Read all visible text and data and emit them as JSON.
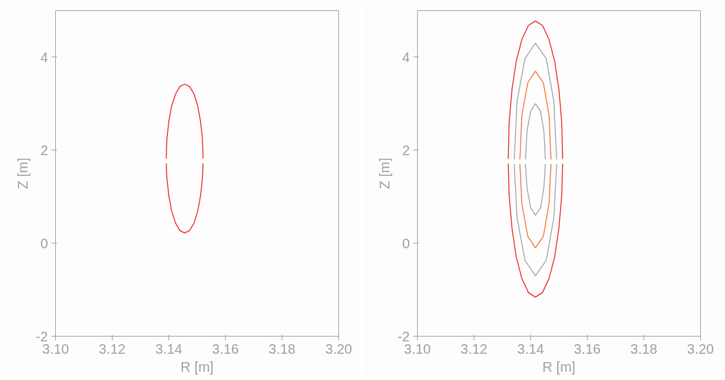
{
  "chart_data": [
    {
      "type": "line",
      "xlabel": "R [m]",
      "ylabel": "Z [m]",
      "xlim": [
        3.1,
        3.2
      ],
      "ylim": [
        -2,
        5
      ],
      "xticks": [
        {
          "value": 3.1,
          "label": "3.10"
        },
        {
          "value": 3.12,
          "label": "3.12"
        },
        {
          "value": 3.14,
          "label": "3.14"
        },
        {
          "value": 3.16,
          "label": "3.16"
        },
        {
          "value": 3.18,
          "label": "3.18"
        },
        {
          "value": 3.2,
          "label": "3.20"
        }
      ],
      "yticks": [
        -2,
        0,
        2,
        4
      ],
      "series": [
        {
          "color": "#e8201a",
          "x": [
            3.1391,
            3.1393,
            3.14,
            3.141,
            3.1424,
            3.1439,
            3.1456,
            3.1473,
            3.1489,
            3.1502,
            3.1512,
            3.1519,
            3.1521
          ],
          "values": [
            1.82,
            2.23,
            2.62,
            2.95,
            3.21,
            3.37,
            3.42,
            3.37,
            3.21,
            2.95,
            2.62,
            2.23,
            1.82
          ]
        },
        {
          "color": "#e8201a",
          "x": [
            3.1391,
            3.1393,
            3.14,
            3.141,
            3.1424,
            3.1439,
            3.1456,
            3.1473,
            3.1489,
            3.1502,
            3.1512,
            3.1519,
            3.1521
          ],
          "values": [
            1.72,
            1.41,
            1.02,
            0.69,
            0.43,
            0.27,
            0.22,
            0.27,
            0.43,
            0.69,
            1.02,
            1.41,
            1.72
          ]
        }
      ]
    },
    {
      "type": "line",
      "xlabel": "R [m]",
      "ylabel": "Z [m]",
      "xlim": [
        3.1,
        3.2
      ],
      "ylim": [
        -2,
        5
      ],
      "xticks": [
        {
          "value": 3.1,
          "label": "3.10"
        },
        {
          "value": 3.12,
          "label": "3.12"
        },
        {
          "value": 3.14,
          "label": "3.14"
        },
        {
          "value": 3.16,
          "label": "3.16"
        },
        {
          "value": 3.18,
          "label": "3.18"
        },
        {
          "value": 3.2,
          "label": "3.20"
        }
      ],
      "yticks": [
        -2,
        0,
        2,
        4
      ],
      "series": [
        {
          "color": "#a0a0a0",
          "x": [
            3.1342,
            3.1352,
            3.138,
            3.1417,
            3.1455,
            3.1482,
            3.1492
          ],
          "values": [
            1.8,
            3.05,
            3.97,
            4.3,
            3.97,
            3.05,
            1.8
          ]
        },
        {
          "color": "#a0a0a0",
          "x": [
            3.1342,
            3.1352,
            3.138,
            3.1417,
            3.1455,
            3.1482,
            3.1492
          ],
          "values": [
            1.7,
            0.55,
            -0.37,
            -0.7,
            -0.37,
            0.55,
            1.7
          ]
        },
        {
          "color": "#f07030",
          "x": [
            3.1362,
            3.1369,
            3.139,
            3.1417,
            3.1445,
            3.1465,
            3.1472
          ],
          "values": [
            1.8,
            2.75,
            3.45,
            3.7,
            3.45,
            2.75,
            1.8
          ]
        },
        {
          "color": "#f07030",
          "x": [
            3.1362,
            3.1369,
            3.139,
            3.1417,
            3.1445,
            3.1465,
            3.1472
          ],
          "values": [
            1.7,
            0.85,
            0.15,
            -0.1,
            0.15,
            0.85,
            1.7
          ]
        },
        {
          "color": "#a0a0a0",
          "x": [
            3.1382,
            3.1387,
            3.14,
            3.1417,
            3.1435,
            3.1447,
            3.1452
          ],
          "values": [
            1.8,
            2.4,
            2.84,
            3.0,
            2.84,
            2.4,
            1.8
          ]
        },
        {
          "color": "#a0a0a0",
          "x": [
            3.1382,
            3.1387,
            3.14,
            3.1417,
            3.1435,
            3.1447,
            3.1452
          ],
          "values": [
            1.7,
            1.2,
            0.76,
            0.6,
            0.76,
            1.2,
            1.7
          ]
        },
        {
          "color": "#e8201a",
          "x": [
            3.1321,
            3.1324,
            3.1334,
            3.1349,
            3.1369,
            3.1392,
            3.1417,
            3.1442,
            3.1465,
            3.1485,
            3.15,
            3.151,
            3.1513
          ],
          "values": [
            1.81,
            2.58,
            3.3,
            3.91,
            4.38,
            4.68,
            4.78,
            4.68,
            4.38,
            3.91,
            3.3,
            2.58,
            1.81
          ]
        },
        {
          "color": "#e8201a",
          "x": [
            3.1321,
            3.1324,
            3.1334,
            3.1349,
            3.1369,
            3.1392,
            3.1417,
            3.1442,
            3.1465,
            3.1485,
            3.15,
            3.151,
            3.1513
          ],
          "values": [
            1.71,
            1.04,
            0.33,
            -0.29,
            -0.76,
            -1.06,
            -1.16,
            -1.06,
            -0.76,
            -0.29,
            0.33,
            1.04,
            1.71
          ]
        }
      ]
    }
  ]
}
